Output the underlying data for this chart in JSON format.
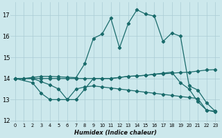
{
  "title": "",
  "xlabel": "Humidex (Indice chaleur)",
  "background_color": "#cce8ec",
  "grid_color": "#aaccd4",
  "line_color": "#1a6b6b",
  "xlim": [
    -0.5,
    23.5
  ],
  "ylim": [
    11.9,
    17.6
  ],
  "yticks": [
    12,
    13,
    14,
    15,
    16,
    17
  ],
  "xticks": [
    0,
    1,
    2,
    3,
    4,
    5,
    6,
    7,
    8,
    9,
    10,
    11,
    12,
    13,
    14,
    15,
    16,
    17,
    18,
    19,
    20,
    21,
    22,
    23
  ],
  "series_peak_x": [
    0,
    1,
    2,
    3,
    4,
    5,
    6,
    7,
    8,
    9,
    10,
    11,
    12,
    13,
    14,
    15,
    16,
    17,
    18,
    19,
    20,
    21,
    22,
    23
  ],
  "series_peak_y": [
    14.0,
    14.0,
    14.05,
    14.1,
    14.1,
    14.08,
    14.06,
    14.04,
    14.7,
    15.9,
    16.1,
    16.85,
    15.45,
    16.6,
    17.25,
    17.05,
    16.95,
    15.75,
    16.15,
    16.0,
    13.65,
    13.45,
    12.85,
    12.45
  ],
  "series_flat_x": [
    0,
    1,
    2,
    3,
    4,
    5,
    6,
    7,
    8,
    9,
    10,
    11,
    12,
    13,
    14,
    15,
    16,
    17,
    18,
    19,
    20,
    21,
    22,
    23
  ],
  "series_flat_y": [
    14.0,
    14.0,
    14.0,
    14.0,
    14.0,
    14.0,
    14.0,
    14.0,
    14.0,
    14.0,
    14.0,
    14.0,
    14.05,
    14.1,
    14.12,
    14.15,
    14.2,
    14.22,
    14.25,
    14.28,
    14.3,
    14.35,
    14.4,
    14.42
  ],
  "series_low_x": [
    0,
    2,
    3,
    4,
    5,
    6,
    7,
    8,
    9,
    10,
    11,
    12,
    13,
    14,
    15,
    16,
    17,
    18,
    19,
    20,
    21,
    22,
    23
  ],
  "series_low_y": [
    14.0,
    13.8,
    13.3,
    13.0,
    13.0,
    13.0,
    13.5,
    13.6,
    13.65,
    13.6,
    13.55,
    13.5,
    13.45,
    13.4,
    13.35,
    13.3,
    13.25,
    13.2,
    13.15,
    13.1,
    13.05,
    12.5,
    12.45
  ],
  "series_diag_x": [
    0,
    1,
    2,
    3,
    4,
    5,
    6,
    7,
    8,
    9,
    10,
    11,
    12,
    13,
    14,
    15,
    16,
    17,
    18,
    19,
    20,
    21,
    22,
    23
  ],
  "series_diag_y": [
    14.0,
    14.0,
    14.0,
    13.85,
    13.7,
    13.5,
    13.0,
    13.0,
    13.5,
    14.0,
    14.0,
    14.0,
    14.05,
    14.1,
    14.12,
    14.15,
    14.2,
    14.25,
    14.3,
    13.8,
    13.5,
    12.9,
    12.5,
    12.42
  ]
}
